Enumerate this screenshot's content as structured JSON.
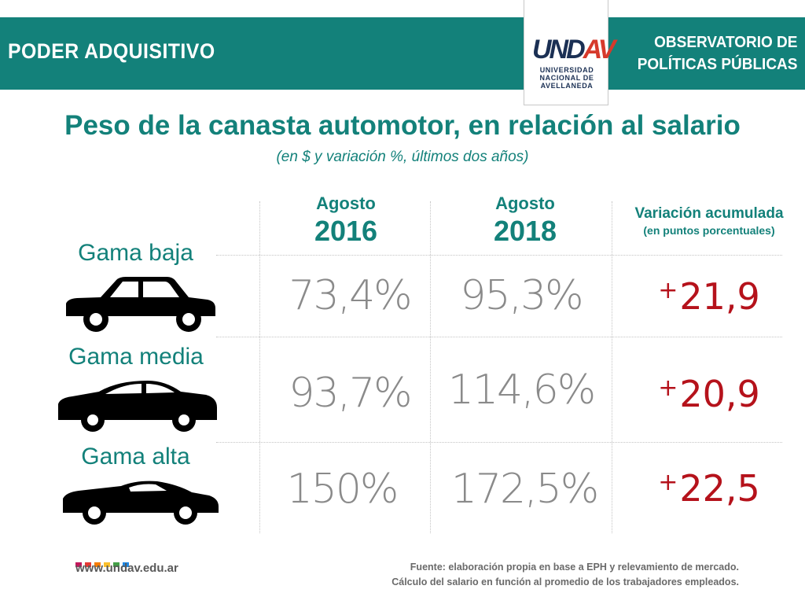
{
  "header": {
    "section": "PODER ADQUISITIVO",
    "observatory_line1": "OBSERVATORIO DE",
    "observatory_line2": "POLÍTICAS PÚBLICAS",
    "logo_text_a": "UND",
    "logo_text_b": "AV",
    "logo_sub1": "UNIVERSIDAD",
    "logo_sub2": "NACIONAL DE",
    "logo_sub3": "AVELLANEDA"
  },
  "title": "Peso de la canasta automotor, en relación al salario",
  "subtitle": "(en $ y variación %, últimos dos años)",
  "columns": {
    "c1_month": "Agosto",
    "c1_year": "2016",
    "c2_month": "Agosto",
    "c2_year": "2018",
    "c3_line1": "Variación acumulada",
    "c3_line2": "(en puntos porcentuales)"
  },
  "rows": [
    {
      "label": "Gama baja",
      "icon": "sedan-car-icon",
      "v2016": "73,4%",
      "v2018": "95,3%",
      "sign": "+",
      "variation": "21,9"
    },
    {
      "label": "Gama media",
      "icon": "midsize-car-icon",
      "v2016": "93,7%",
      "v2018": "114,6%",
      "sign": "+",
      "variation": "20,9"
    },
    {
      "label": "Gama alta",
      "icon": "sports-car-icon",
      "v2016": "150%",
      "v2018": "172,5%",
      "sign": "+",
      "variation": "22,5"
    }
  ],
  "footer": {
    "website": "www.undav.edu.ar",
    "source_line1": "Fuente: elaboración propia en base a EPH y relevamiento de mercado.",
    "source_line2": "Cálculo del salario en función al promedio de los trabajadores empleados."
  },
  "colors": {
    "brand_teal": "#13817a",
    "variation_red": "#b5121b",
    "value_gray": "#8a8a8a",
    "logo_navy": "#1b3054",
    "dot_colors": [
      "#c2185b",
      "#e53935",
      "#f57c00",
      "#fbc02d",
      "#43a047",
      "#1e88e5"
    ]
  }
}
